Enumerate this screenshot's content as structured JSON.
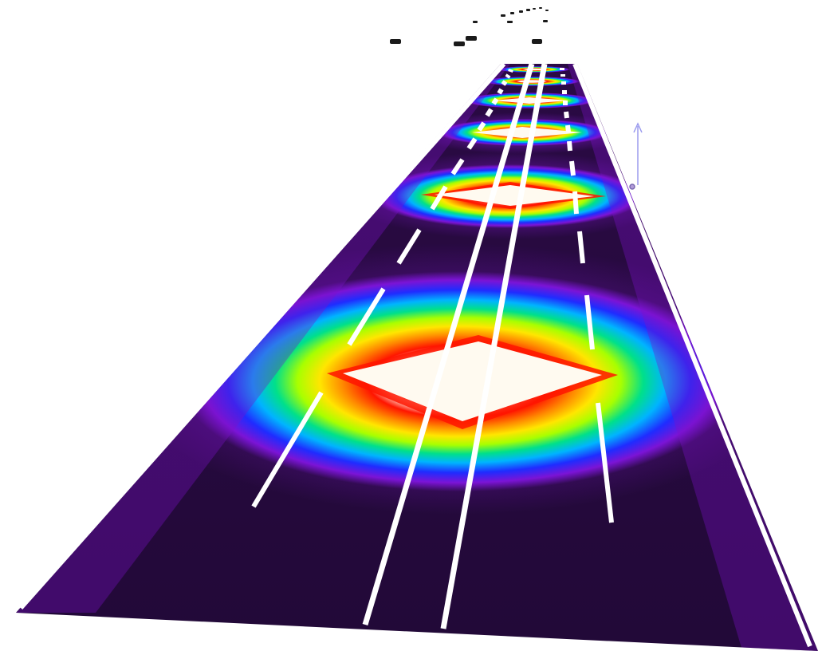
{
  "scene": {
    "description_free": true,
    "colors": {
      "background": "#ffffff",
      "road_base": "#250a3d",
      "road_edge_glow": "#7a12c8",
      "marking": "#ffffff",
      "vehicle": "#1a1a1a",
      "axis_arrow": "#9a9aee"
    },
    "colormap": [
      "#2a0a44",
      "#7b14d6",
      "#1f2cff",
      "#00b4ff",
      "#00e08a",
      "#a8ff00",
      "#ffe600",
      "#ff8a00",
      "#ff1500",
      "#fffaf0"
    ],
    "hotspot_count": 6,
    "lane_marking_styles": [
      "solid-edge-left",
      "dashed",
      "solid-double-center",
      "dashed",
      "solid-edge-right"
    ],
    "vehicle_count": 14
  }
}
